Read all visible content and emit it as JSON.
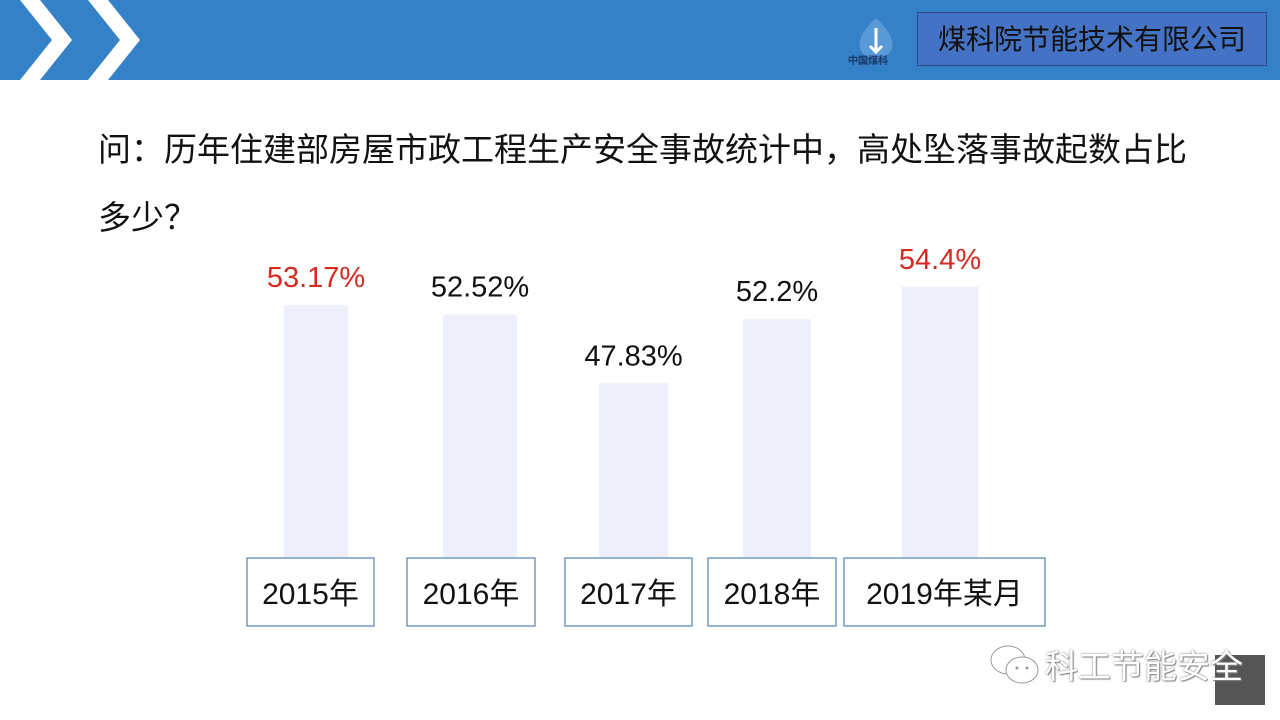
{
  "header": {
    "company": "煤科院节能技术有限公司",
    "logo_text": "中国煤科",
    "color": "#3481C8"
  },
  "question": "问：历年住建部房屋市政工程生产安全事故统计中，高处坠落事故起数占比多少？",
  "chart_data": {
    "type": "bar",
    "categories": [
      "2015年",
      "2016年",
      "2017年",
      "2018年",
      "2019年某月"
    ],
    "values": [
      53.17,
      52.52,
      47.83,
      52.2,
      54.4
    ],
    "labels": [
      "53.17%",
      "52.52%",
      "47.83%",
      "52.2%",
      "54.4%"
    ],
    "label_colors": [
      "#D42A20",
      "#111111",
      "#111111",
      "#111111",
      "#D42A20"
    ],
    "bar_color": "#EDF0FA",
    "ylim": [
      36,
      55
    ],
    "grid": false
  },
  "watermark": "科工节能安全"
}
